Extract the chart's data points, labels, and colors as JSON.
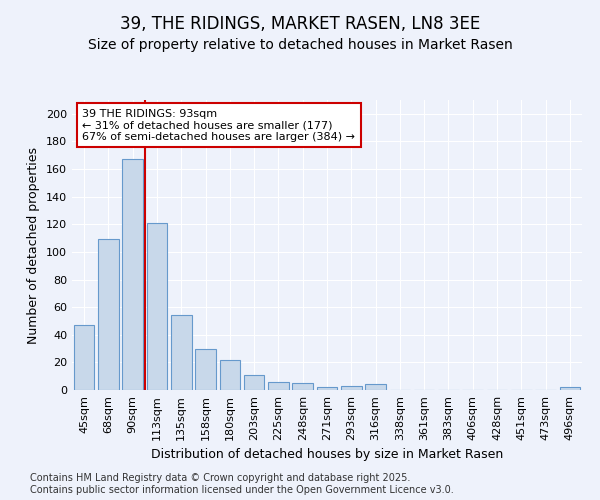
{
  "title1": "39, THE RIDINGS, MARKET RASEN, LN8 3EE",
  "title2": "Size of property relative to detached houses in Market Rasen",
  "xlabel": "Distribution of detached houses by size in Market Rasen",
  "ylabel": "Number of detached properties",
  "categories": [
    "45sqm",
    "68sqm",
    "90sqm",
    "113sqm",
    "135sqm",
    "158sqm",
    "180sqm",
    "203sqm",
    "225sqm",
    "248sqm",
    "271sqm",
    "293sqm",
    "316sqm",
    "338sqm",
    "361sqm",
    "383sqm",
    "406sqm",
    "428sqm",
    "451sqm",
    "473sqm",
    "496sqm"
  ],
  "values": [
    47,
    109,
    167,
    121,
    54,
    30,
    22,
    11,
    6,
    5,
    2,
    3,
    4,
    0,
    0,
    0,
    0,
    0,
    0,
    0,
    2
  ],
  "bar_color": "#c8d8ea",
  "bar_edge_color": "#6699cc",
  "bar_edge_width": 0.8,
  "red_line_x": 2.5,
  "annotation_title": "39 THE RIDINGS: 93sqm",
  "annotation_line1": "← 31% of detached houses are smaller (177)",
  "annotation_line2": "67% of semi-detached houses are larger (384) →",
  "annotation_box_facecolor": "#ffffff",
  "annotation_box_edgecolor": "#cc0000",
  "ylim": [
    0,
    210
  ],
  "yticks": [
    0,
    20,
    40,
    60,
    80,
    100,
    120,
    140,
    160,
    180,
    200
  ],
  "background_color": "#eef2fb",
  "grid_color": "#ffffff",
  "footer1": "Contains HM Land Registry data © Crown copyright and database right 2025.",
  "footer2": "Contains public sector information licensed under the Open Government Licence v3.0.",
  "title_fontsize": 12,
  "subtitle_fontsize": 10,
  "ylabel_fontsize": 9,
  "xlabel_fontsize": 9,
  "tick_fontsize": 8,
  "annotation_fontsize": 8,
  "footer_fontsize": 7
}
